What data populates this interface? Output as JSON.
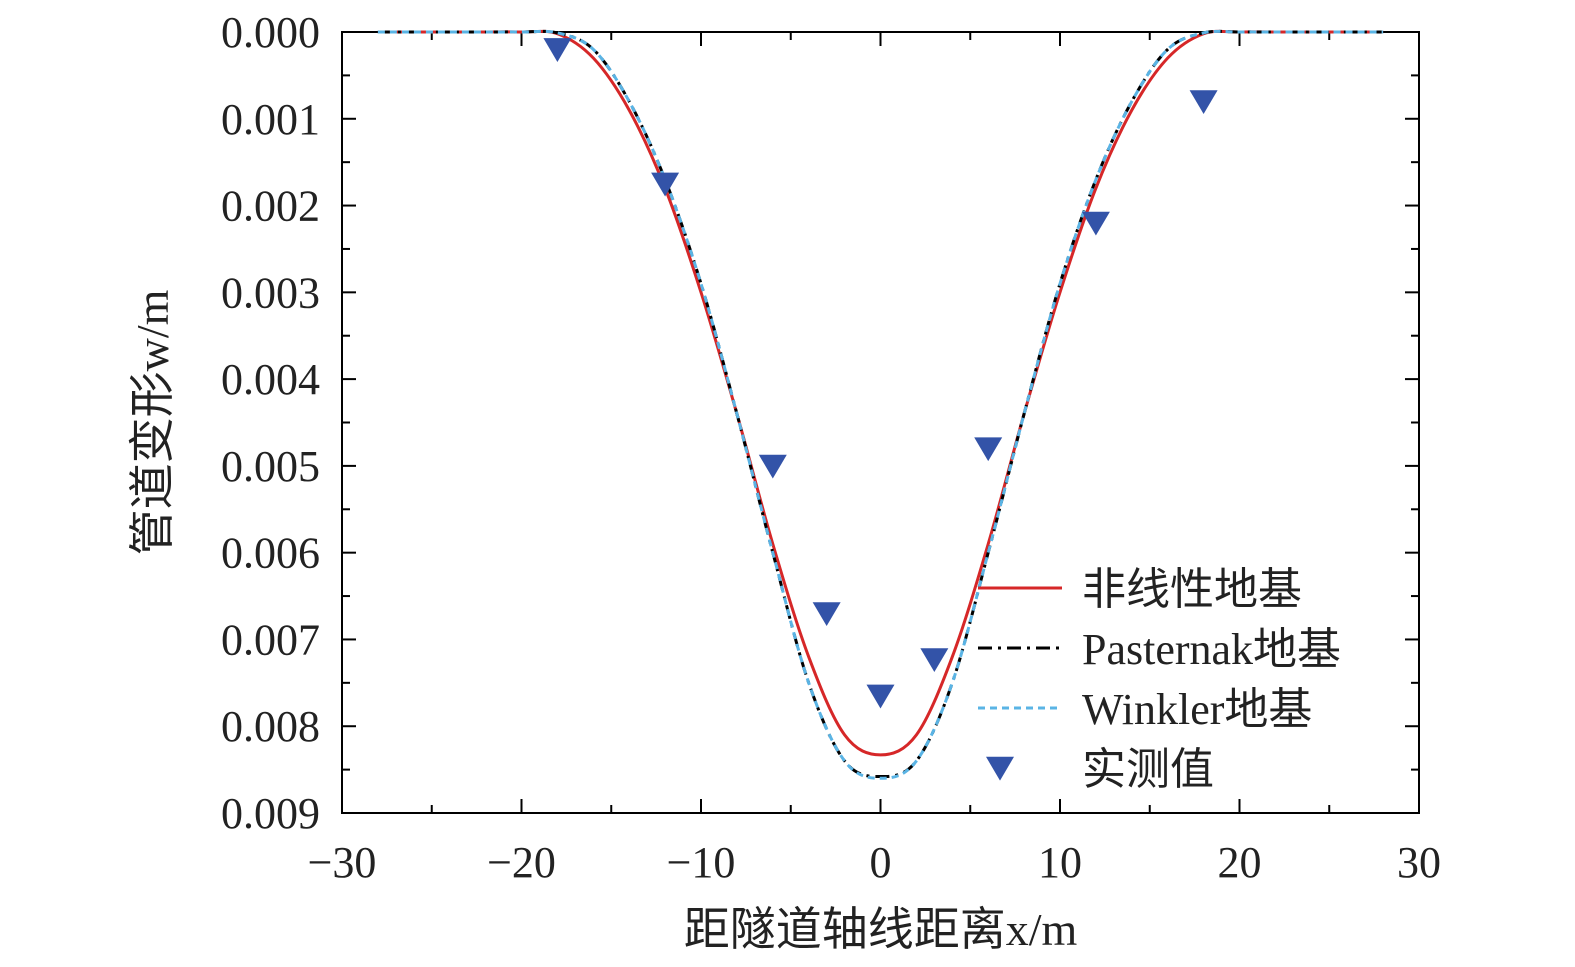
{
  "chart_data": {
    "type": "line",
    "xlabel": "距隧道轴线距离x/m",
    "ylabel": "管道变形w/m",
    "xlim": [
      -30,
      30
    ],
    "ylim": [
      0,
      0.009
    ],
    "y_inverted": true,
    "xticks": [
      -30,
      -20,
      -10,
      0,
      10,
      20,
      30
    ],
    "xtick_labels": [
      "−30",
      "−20",
      "−10",
      "0",
      "10",
      "20",
      "30"
    ],
    "yticks": [
      0,
      0.001,
      0.002,
      0.003,
      0.004,
      0.005,
      0.006,
      0.007,
      0.008,
      0.009
    ],
    "ytick_labels": [
      "0.000",
      "0.001",
      "0.002",
      "0.003",
      "0.004",
      "0.005",
      "0.006",
      "0.007",
      "0.008",
      "0.009"
    ],
    "grid": false,
    "legend_position": "bottom-right",
    "series": [
      {
        "name": "非线性地基",
        "style": "solid",
        "color": "#d62728",
        "x": [
          -28,
          -26,
          -24,
          -22,
          -20,
          -18,
          -16,
          -14,
          -12,
          -10,
          -8,
          -6,
          -4,
          -2,
          0,
          2,
          4,
          6,
          8,
          10,
          12,
          14,
          16,
          18,
          20,
          22,
          24,
          26,
          28
        ],
        "y": [
          0,
          0,
          0,
          0,
          0,
          2e-05,
          0.0003,
          0.0009,
          0.0018,
          0.003,
          0.0044,
          0.0059,
          0.0072,
          0.0081,
          0.00833,
          0.0081,
          0.0072,
          0.0059,
          0.0044,
          0.003,
          0.0018,
          0.0009,
          0.0003,
          2e-05,
          0,
          0,
          0,
          0,
          0
        ]
      },
      {
        "name": "Pasternak地基",
        "style": "dashdot",
        "color": "#000000",
        "x": [
          -28,
          -26,
          -24,
          -22,
          -20,
          -18,
          -16,
          -14,
          -12,
          -10,
          -8,
          -6,
          -4,
          -2,
          0,
          2,
          4,
          6,
          8,
          10,
          12,
          14,
          16,
          18,
          20,
          22,
          24,
          26,
          28
        ],
        "y": [
          0,
          0,
          0,
          0,
          0,
          1e-05,
          0.0002,
          0.0008,
          0.0017,
          0.0029,
          0.0044,
          0.006,
          0.0075,
          0.0084,
          0.00858,
          0.0084,
          0.0075,
          0.006,
          0.0044,
          0.0029,
          0.0017,
          0.0008,
          0.0002,
          1e-05,
          0,
          0,
          0,
          0,
          0
        ]
      },
      {
        "name": "Winkler地基",
        "style": "dotted",
        "color": "#5ab4e5",
        "x": [
          -28,
          -26,
          -24,
          -22,
          -20,
          -18,
          -16,
          -14,
          -12,
          -10,
          -8,
          -6,
          -4,
          -2,
          0,
          2,
          4,
          6,
          8,
          10,
          12,
          14,
          16,
          18,
          20,
          22,
          24,
          26,
          28
        ],
        "y": [
          0,
          0,
          0,
          0,
          0,
          1e-05,
          0.0002,
          0.0008,
          0.0017,
          0.0029,
          0.0044,
          0.006,
          0.0075,
          0.0084,
          0.0086,
          0.0084,
          0.0075,
          0.006,
          0.0044,
          0.0029,
          0.0017,
          0.0008,
          0.0002,
          1e-05,
          0,
          0,
          0,
          0,
          0
        ]
      },
      {
        "name": "实测值",
        "style": "marker",
        "color": "#3353a8",
        "x": [
          -18,
          -12,
          -6,
          -3,
          0,
          3,
          6,
          12,
          18
        ],
        "y": [
          0.0002,
          0.00175,
          0.005,
          0.0067,
          0.00765,
          0.00723,
          0.0048,
          0.0022,
          0.0008
        ]
      }
    ]
  }
}
